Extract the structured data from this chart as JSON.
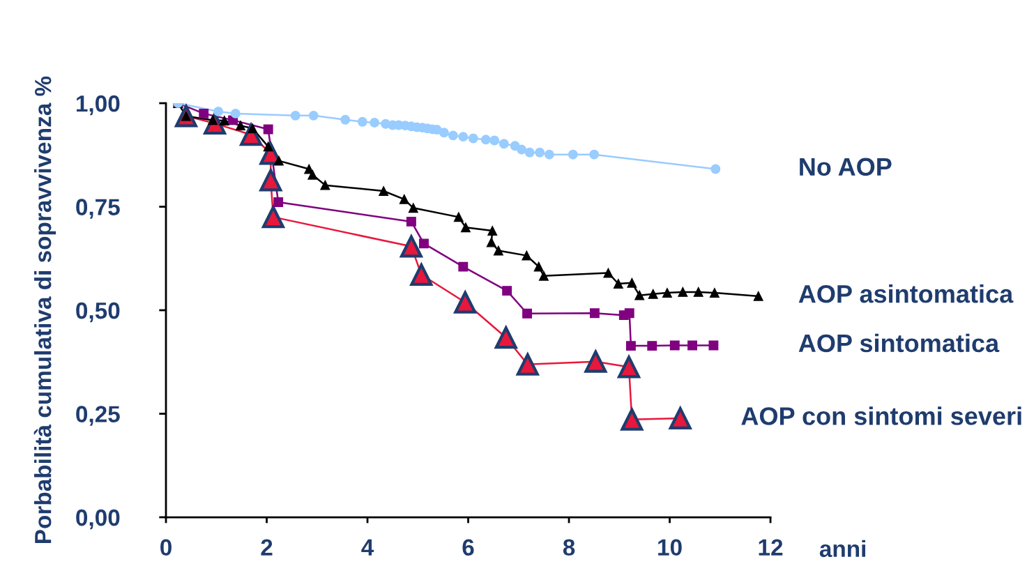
{
  "chart_data": {
    "type": "line",
    "xlabel": "anni",
    "ylabel": "Porbabilità cumulativa di sopravvivenza %",
    "xlim": [
      0,
      12
    ],
    "xticks": [
      0,
      2,
      4,
      6,
      8,
      10,
      12
    ],
    "ylim": [
      0,
      1
    ],
    "yticks": [
      {
        "value": 0,
        "label": "0,00"
      },
      {
        "value": 0.25,
        "label": "0,25"
      },
      {
        "value": 0.5,
        "label": "0,50"
      },
      {
        "value": 0.75,
        "label": "0,75"
      },
      {
        "value": 1,
        "label": "1,00"
      }
    ],
    "grid": false,
    "legend": false,
    "line_style": "solid",
    "series": [
      {
        "name": "No AOP",
        "color": "#99ccff",
        "marker": "circle",
        "x": [
          0.24,
          1.04,
          1.38,
          2.57,
          2.93,
          3.56,
          3.9,
          4.14,
          4.36,
          4.5,
          4.62,
          4.75,
          4.87,
          4.98,
          5.09,
          5.19,
          5.29,
          5.38,
          5.52,
          5.7,
          5.9,
          6.1,
          6.35,
          6.52,
          6.71,
          6.93,
          7.06,
          7.22,
          7.42,
          7.61,
          8.08,
          8.5,
          10.91
        ],
        "values": [
          1.0,
          0.98,
          0.975,
          0.97,
          0.97,
          0.96,
          0.955,
          0.953,
          0.95,
          0.947,
          0.947,
          0.946,
          0.944,
          0.942,
          0.941,
          0.939,
          0.937,
          0.936,
          0.929,
          0.922,
          0.919,
          0.915,
          0.912,
          0.91,
          0.902,
          0.897,
          0.888,
          0.881,
          0.881,
          0.876,
          0.876,
          0.876,
          0.841
        ]
      },
      {
        "name": "AOP asintomatica",
        "color": "#000000",
        "marker": "triangle",
        "x": [
          0.24,
          0.4,
          0.93,
          1.16,
          1.48,
          1.72,
          2.03,
          2.24,
          2.84,
          2.91,
          3.16,
          4.32,
          4.73,
          4.91,
          5.81,
          5.95,
          6.48,
          6.46,
          6.6,
          7.16,
          7.4,
          7.5,
          8.78,
          8.98,
          9.25,
          9.4,
          9.67,
          9.95,
          10.26,
          10.57,
          10.89,
          11.76
        ],
        "values": [
          1.0,
          0.969,
          0.959,
          0.958,
          0.946,
          0.939,
          0.895,
          0.861,
          0.841,
          0.827,
          0.802,
          0.788,
          0.768,
          0.747,
          0.725,
          0.7,
          0.692,
          0.664,
          0.644,
          0.632,
          0.605,
          0.583,
          0.59,
          0.564,
          0.566,
          0.536,
          0.539,
          0.542,
          0.544,
          0.544,
          0.542,
          0.534
        ]
      },
      {
        "name": "AOP sintomatica",
        "color": "#800080",
        "marker": "square",
        "x": [
          0.24,
          0.75,
          1.33,
          2.03,
          2.23,
          4.87,
          5.12,
          5.9,
          6.77,
          7.17,
          8.51,
          9.09,
          9.2,
          9.23,
          9.65,
          10.1,
          10.45,
          10.87
        ],
        "values": [
          1.0,
          0.975,
          0.959,
          0.937,
          0.761,
          0.714,
          0.661,
          0.605,
          0.547,
          0.492,
          0.493,
          0.488,
          0.493,
          0.414,
          0.414,
          0.415,
          0.415,
          0.415
        ]
      },
      {
        "name": "AOP con sintomi severi",
        "color": "#e8173c",
        "marker": "triangle",
        "x": [
          0.4,
          0.97,
          1.69,
          2.08,
          2.08,
          2.13,
          4.87,
          5.07,
          5.94,
          6.75,
          7.18,
          8.53,
          9.19,
          9.25,
          10.21
        ],
        "values": [
          0.969,
          0.951,
          0.924,
          0.878,
          0.814,
          0.725,
          0.654,
          0.586,
          0.519,
          0.434,
          0.369,
          0.376,
          0.363,
          0.236,
          0.239
        ]
      }
    ]
  }
}
